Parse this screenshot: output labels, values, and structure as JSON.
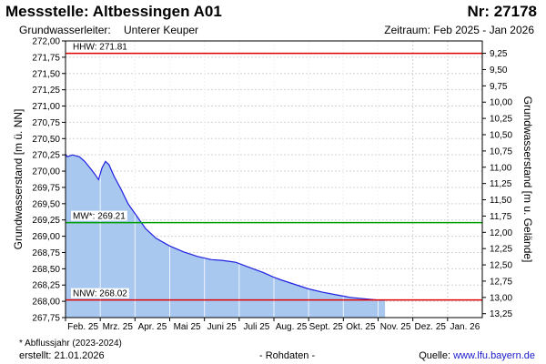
{
  "header": {
    "title": "Messstelle: Altbessingen A01",
    "nr": "Nr: 27178",
    "aquifer_label": "Grundwasserleiter:",
    "aquifer_value": "Unterer Keuper",
    "period": "Zeitraum: Feb 2025 - Jan 2026"
  },
  "footer": {
    "footnote": "* Abflussjahr (2023-2024)",
    "created": "erstellt:  21.01.2026",
    "rawdata": "- Rohdaten -",
    "source_label": "Quelle: ",
    "source_url": "www.lfu.bayern.de"
  },
  "chart_data": {
    "type": "area",
    "ylabel": "Grundwasserstand [m ü. NN]",
    "y2label": "Grundwasserstand [m u. Gelände]",
    "ylim": [
      267.75,
      272.0
    ],
    "y_ticks": [
      "267,75",
      "268,00",
      "268,25",
      "268,50",
      "268,75",
      "269,00",
      "269,25",
      "269,50",
      "269,75",
      "270,00",
      "270,25",
      "270,50",
      "270,75",
      "271,00",
      "271,25",
      "271,50",
      "271,75",
      "272,00"
    ],
    "y2_ticks": [
      "9,25",
      "9,50",
      "9,75",
      "10,00",
      "10,25",
      "10,50",
      "10,75",
      "11,00",
      "11,25",
      "11,50",
      "11,75",
      "12,00",
      "12,25",
      "12,50",
      "12,75",
      "13,00",
      "13,25"
    ],
    "x_ticks": [
      "Feb. 25",
      "Mrz. 25",
      "Apr. 25",
      "Mai 25",
      "Juni 25",
      "Juli 25",
      "Aug. 25",
      "Sept. 25",
      "Okt. 25",
      "Nov. 25",
      "Dez. 25",
      "Jan. 26"
    ],
    "series": [
      {
        "x": [
          0,
          0.05,
          0.2,
          0.4,
          0.55,
          0.75,
          0.85,
          0.95,
          1.05,
          1.15,
          1.25,
          1.4,
          1.6,
          1.8,
          2.0,
          2.3,
          2.6,
          3.0,
          3.4,
          3.8,
          4.2,
          4.5,
          4.9,
          5.3,
          5.7,
          6.0,
          6.2,
          6.6,
          7.0,
          7.4,
          7.8,
          8.2,
          8.6,
          9.0,
          9.2
        ],
        "y": [
          270.26,
          270.22,
          270.25,
          270.22,
          270.15,
          270.02,
          269.95,
          269.87,
          270.05,
          270.15,
          270.1,
          269.92,
          269.72,
          269.5,
          269.35,
          269.12,
          268.97,
          268.85,
          268.76,
          268.69,
          268.64,
          268.63,
          268.6,
          268.52,
          268.44,
          268.37,
          268.33,
          268.26,
          268.19,
          268.14,
          268.1,
          268.06,
          268.04,
          268.02,
          268.02
        ]
      }
    ],
    "reference_lines": [
      {
        "label": "HHW: 271.81",
        "value": 271.81,
        "color": "#e00000"
      },
      {
        "label": "MW*: 269.21",
        "value": 269.21,
        "color": "#00a000"
      },
      {
        "label": "NNW: 268.02",
        "value": 268.02,
        "color": "#e00000"
      }
    ],
    "fill_color": "#a8c8f0",
    "line_color": "#2020e0",
    "grid": true
  }
}
